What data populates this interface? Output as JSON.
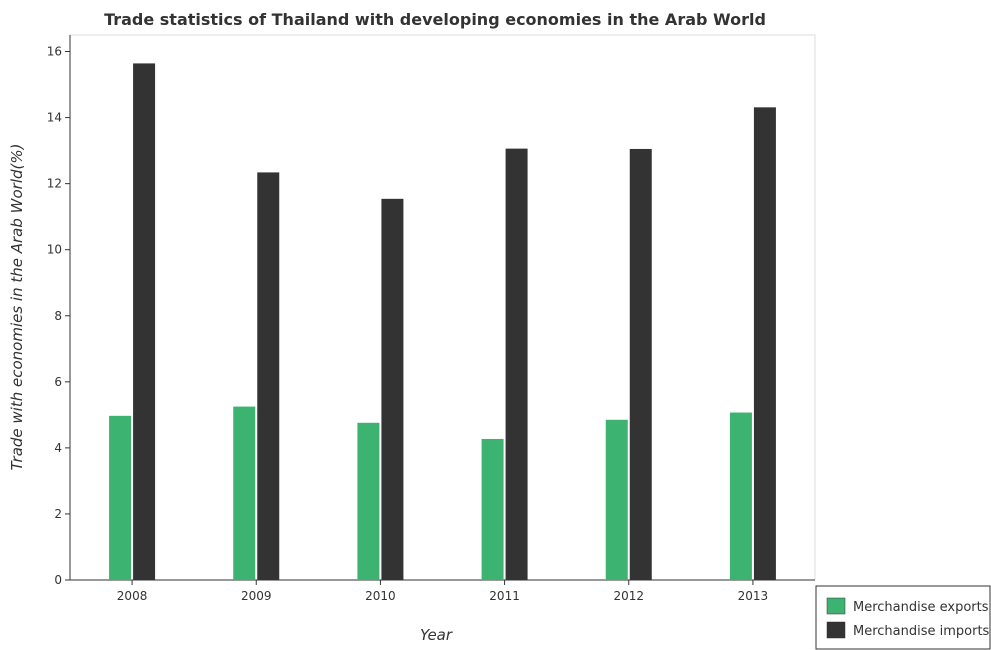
{
  "chart_data": {
    "type": "bar",
    "title": "Trade statistics of Thailand with developing economies in the Arab World",
    "xlabel": "Year",
    "ylabel": "Trade with economies in the Arab World(%)",
    "categories": [
      "2008",
      "2009",
      "2010",
      "2011",
      "2012",
      "2013"
    ],
    "ylim": [
      0,
      16.5
    ],
    "yticks": [
      0,
      2,
      4,
      6,
      8,
      10,
      12,
      14,
      16
    ],
    "legend_position": "bottom-right",
    "grid": false,
    "series": [
      {
        "name": "Merchandise exports",
        "color": "#3cb371",
        "values": [
          4.97,
          5.25,
          4.76,
          4.27,
          4.85,
          5.07
        ]
      },
      {
        "name": "Merchandise imports",
        "color": "#333333",
        "values": [
          15.64,
          12.34,
          11.54,
          13.06,
          13.05,
          14.31
        ]
      }
    ]
  }
}
